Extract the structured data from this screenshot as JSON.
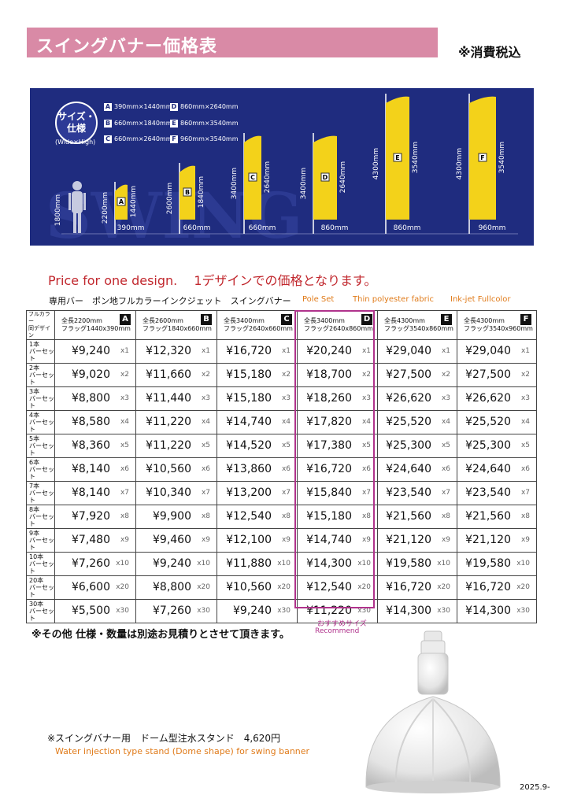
{
  "header": {
    "title": "スイングバナー価格表",
    "tax_note": "※消費税込"
  },
  "spec_panel": {
    "badge_line1": "サイズ・",
    "badge_line2": "仕様",
    "badge_sub": "(Wide×High)",
    "bg_watermark": "SWING",
    "specs": [
      {
        "letter": "A",
        "size": "390mm×1440mm"
      },
      {
        "letter": "B",
        "size": "660mm×1840mm"
      },
      {
        "letter": "C",
        "size": "660mm×2640mm"
      },
      {
        "letter": "D",
        "size": "860mm×2640mm"
      },
      {
        "letter": "E",
        "size": "860mm×3540mm"
      },
      {
        "letter": "F",
        "size": "960mm×3540mm"
      }
    ],
    "person_height": "1800mm",
    "banners": [
      {
        "letter": "A",
        "total": "2200mm",
        "flag": "1440mm",
        "width": "390mm"
      },
      {
        "letter": "B",
        "total": "2600mm",
        "flag": "1840mm",
        "width": "660mm"
      },
      {
        "letter": "C",
        "total": "3400mm",
        "flag": "2640mm",
        "width": "660mm"
      },
      {
        "letter": "D",
        "total": "3400mm",
        "flag": "2640mm",
        "width": "860mm"
      },
      {
        "letter": "E",
        "total": "4300mm",
        "flag": "3540mm",
        "width": "860mm"
      },
      {
        "letter": "F",
        "total": "4300mm",
        "flag": "3540mm",
        "width": "960mm"
      }
    ],
    "colors": {
      "panel": "#1f2c7f",
      "flag": "#f3d21a"
    }
  },
  "price_heading": "Price for one design.　 1デザインでの価格となります。",
  "subheading": {
    "jp": "専用バー　ポン地フルカラーインクジェット　スイングバナー",
    "en1": "Pole Set",
    "en2": "Thin polyester fabric",
    "en3": "Ink-jet Fullcolor"
  },
  "table": {
    "corner_line1": "フルカラー",
    "corner_line2": "同デザイン",
    "columns": [
      {
        "letter": "A",
        "line1": "全長2200mm",
        "line2": "フラッグ1440x390mm"
      },
      {
        "letter": "B",
        "line1": "全長2600mm",
        "line2": "フラッグ1840x660mm"
      },
      {
        "letter": "C",
        "line1": "全長3400mm",
        "line2": "フラッグ2640x660mm"
      },
      {
        "letter": "D",
        "line1": "全長3400mm",
        "line2": "フラッグ2640x860mm"
      },
      {
        "letter": "E",
        "line1": "全長4300mm",
        "line2": "フラッグ3540x860mm"
      },
      {
        "letter": "F",
        "line1": "全長4300mm",
        "line2": "フラッグ3540x960mm"
      }
    ],
    "rows": [
      {
        "qty": "1本",
        "unit": "バーセット",
        "mult": "x1",
        "prices": [
          "¥9,240",
          "¥12,320",
          "¥16,720",
          "¥20,240",
          "¥29,040",
          "¥29,040"
        ]
      },
      {
        "qty": "2本",
        "unit": "バーセット",
        "mult": "x2",
        "prices": [
          "¥9,020",
          "¥11,660",
          "¥15,180",
          "¥18,700",
          "¥27,500",
          "¥27,500"
        ]
      },
      {
        "qty": "3本",
        "unit": "バーセット",
        "mult": "x3",
        "prices": [
          "¥8,800",
          "¥11,440",
          "¥15,180",
          "¥18,260",
          "¥26,620",
          "¥26,620"
        ]
      },
      {
        "qty": "4本",
        "unit": "バーセット",
        "mult": "x4",
        "prices": [
          "¥8,580",
          "¥11,220",
          "¥14,740",
          "¥17,820",
          "¥25,520",
          "¥25,520"
        ]
      },
      {
        "qty": "5本",
        "unit": "バーセット",
        "mult": "x5",
        "prices": [
          "¥8,360",
          "¥11,220",
          "¥14,520",
          "¥17,380",
          "¥25,300",
          "¥25,300"
        ]
      },
      {
        "qty": "6本",
        "unit": "バーセット",
        "mult": "x6",
        "prices": [
          "¥8,140",
          "¥10,560",
          "¥13,860",
          "¥16,720",
          "¥24,640",
          "¥24,640"
        ]
      },
      {
        "qty": "7本",
        "unit": "バーセット",
        "mult": "x7",
        "prices": [
          "¥8,140",
          "¥10,340",
          "¥13,200",
          "¥15,840",
          "¥23,540",
          "¥23,540"
        ]
      },
      {
        "qty": "8本",
        "unit": "バーセット",
        "mult": "x8",
        "prices": [
          "¥7,920",
          "¥9,900",
          "¥12,540",
          "¥15,180",
          "¥21,560",
          "¥21,560"
        ]
      },
      {
        "qty": "9本",
        "unit": "バーセット",
        "mult": "x9",
        "prices": [
          "¥7,480",
          "¥9,460",
          "¥12,100",
          "¥14,740",
          "¥21,120",
          "¥21,120"
        ]
      },
      {
        "qty": "10本",
        "unit": "バーセット",
        "mult": "x10",
        "prices": [
          "¥7,260",
          "¥9,240",
          "¥11,880",
          "¥14,300",
          "¥19,580",
          "¥19,580"
        ]
      },
      {
        "qty": "20本",
        "unit": "バーセット",
        "mult": "x20",
        "prices": [
          "¥6,600",
          "¥8,800",
          "¥10,560",
          "¥12,540",
          "¥16,720",
          "¥16,720"
        ]
      },
      {
        "qty": "30本",
        "unit": "バーセット",
        "mult": "x30",
        "prices": [
          "¥5,500",
          "¥7,260",
          "¥9,240",
          "¥11,220",
          "¥14,300",
          "¥14,300"
        ]
      }
    ]
  },
  "recommend": {
    "jp": "おすすめサイズ",
    "en": "Recommend",
    "color": "#b0338c"
  },
  "other_note": "※その他 仕様・数量は別途お見積りとさせて頂きます。",
  "stand": {
    "jp": "※スイングバナー用　ドーム型注水スタンド　4,620円",
    "en": "Water injection type stand (Dome shape) for swing banner"
  },
  "date": "2025.9-"
}
